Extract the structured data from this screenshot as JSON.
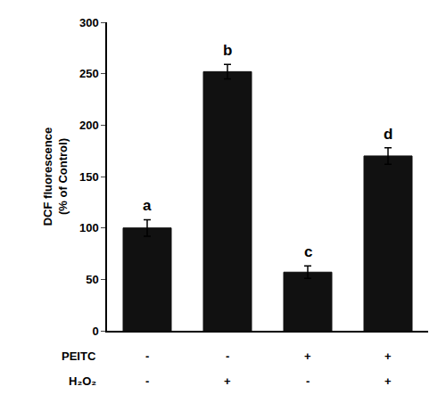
{
  "chart_data": {
    "type": "bar",
    "categories": [
      null,
      null,
      null,
      null
    ],
    "values": [
      100,
      252,
      57,
      170
    ],
    "errors": [
      8,
      7,
      6,
      8
    ],
    "color": "#111111",
    "annotations": [
      "a",
      "b",
      "c",
      "d"
    ],
    "rows": [
      {
        "name": "PEITC",
        "labels": [
          "-",
          "-",
          "+",
          "+"
        ]
      },
      {
        "name": "H₂O₂",
        "labels": [
          "-",
          "+",
          "-",
          "+"
        ]
      }
    ],
    "ylabel": "DCF fluorescence\n(% of Control)",
    "ylim": [
      0,
      300
    ],
    "yticks": [
      0,
      50,
      100,
      150,
      200,
      250,
      300
    ],
    "grid": false,
    "tick_labels": "y"
  }
}
